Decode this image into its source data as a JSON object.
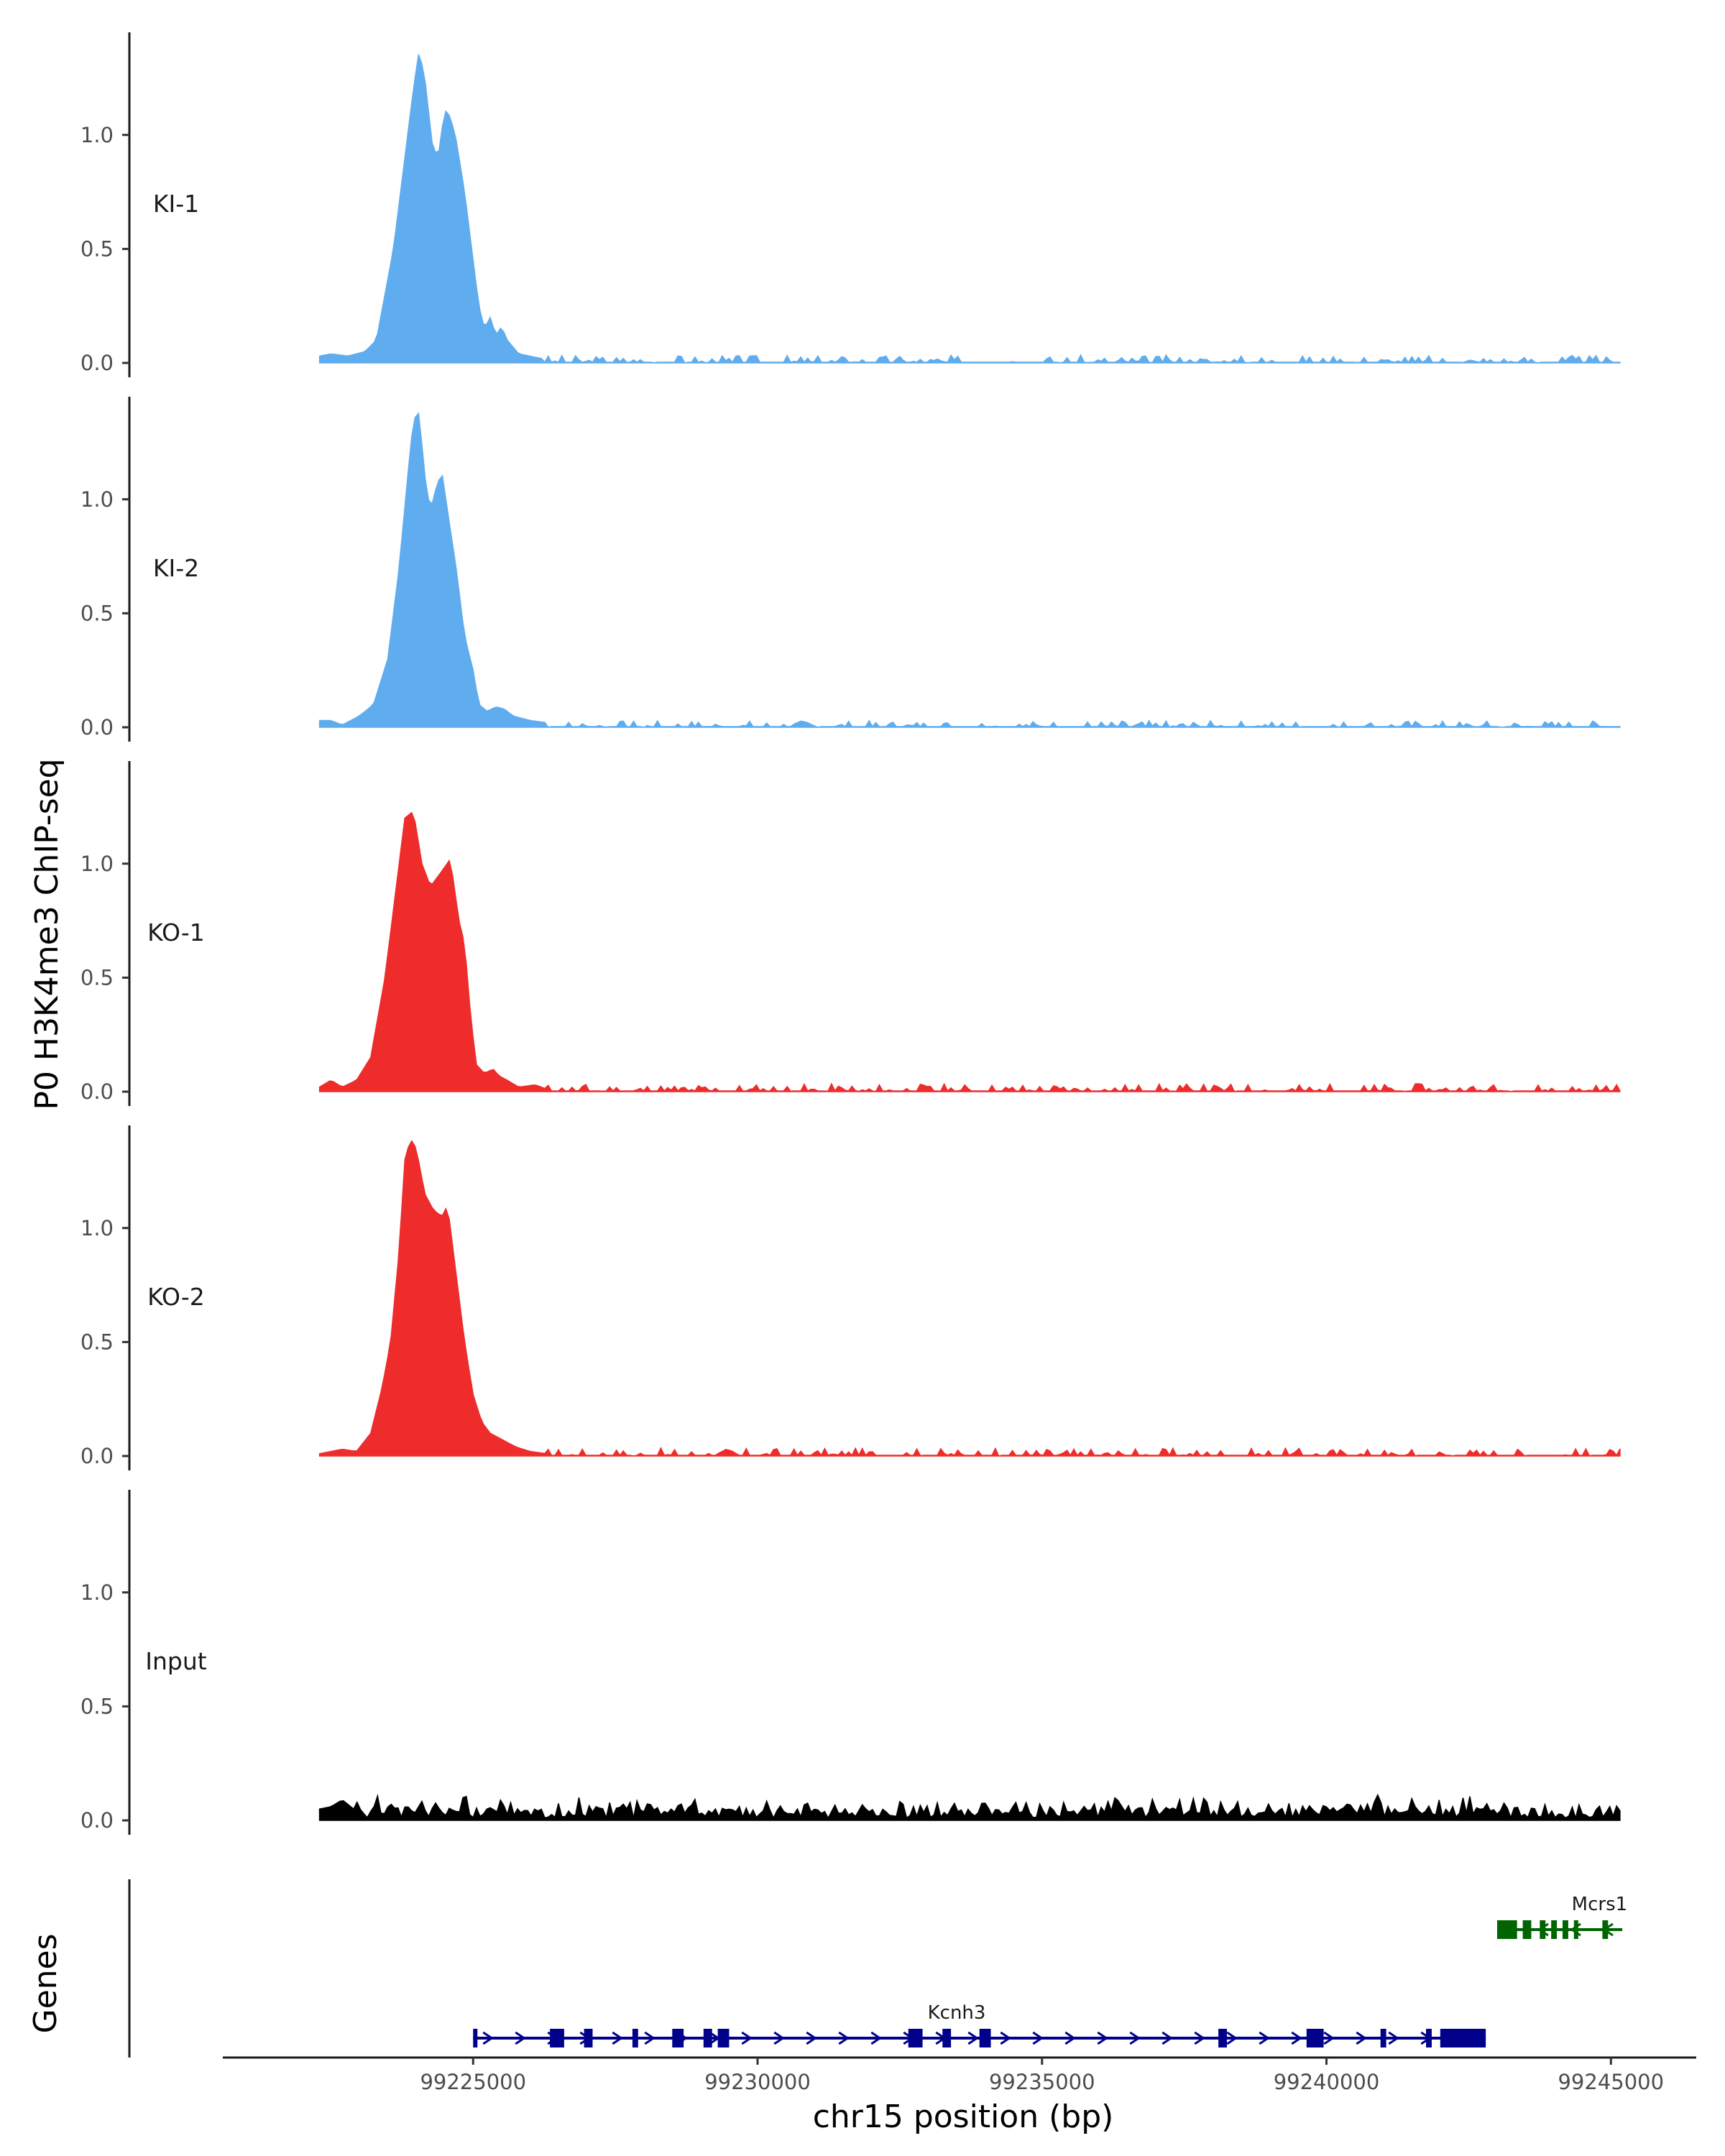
{
  "chart_data": {
    "type": "area",
    "ylabel": "P0 H3K4me3 ChIP-seq",
    "xlabel": "chr15 position (bp)",
    "ylim": [
      0,
      1.45
    ],
    "xlim": [
      99220600,
      99246500
    ],
    "yticks": [
      0.0,
      0.5,
      1.0
    ],
    "ytick_labels": [
      "0.0",
      "0.5",
      "1.0"
    ],
    "xticks": [
      99225000,
      99230000,
      99235000,
      99240000,
      99245000
    ],
    "xtick_labels": [
      "99225000",
      "99230000",
      "99235000",
      "99240000",
      "99245000"
    ],
    "x_start": 99222300,
    "x_end": 99245200,
    "baseline_gaps": [
      [
        99229500,
        99231000
      ]
    ],
    "series": [
      {
        "name": "KI-1",
        "color": "#5fadee",
        "peak": [
          [
            99222300,
            0.03
          ],
          [
            99222500,
            0.04
          ],
          [
            99222800,
            0.03
          ],
          [
            99223100,
            0.05
          ],
          [
            99223300,
            0.1
          ],
          [
            99223450,
            0.3
          ],
          [
            99223600,
            0.5
          ],
          [
            99223750,
            0.8
          ],
          [
            99223850,
            1.0
          ],
          [
            99223950,
            1.2
          ],
          [
            99224050,
            1.37
          ],
          [
            99224150,
            1.25
          ],
          [
            99224300,
            0.92
          ],
          [
            99224400,
            0.93
          ],
          [
            99224500,
            1.11
          ],
          [
            99224600,
            1.08
          ],
          [
            99224700,
            0.98
          ],
          [
            99224850,
            0.75
          ],
          [
            99225000,
            0.45
          ],
          [
            99225100,
            0.25
          ],
          [
            99225200,
            0.15
          ],
          [
            99225300,
            0.2
          ],
          [
            99225400,
            0.12
          ],
          [
            99225500,
            0.16
          ],
          [
            99225600,
            0.1
          ],
          [
            99225800,
            0.04
          ],
          [
            99226000,
            0.03
          ],
          [
            99226200,
            0.02
          ]
        ],
        "noise_seed": 3,
        "noise_amp": 0.03
      },
      {
        "name": "KI-2",
        "color": "#5fadee",
        "peak": [
          [
            99222300,
            0.03
          ],
          [
            99222500,
            0.03
          ],
          [
            99222700,
            0.01
          ],
          [
            99223000,
            0.05
          ],
          [
            99223250,
            0.1
          ],
          [
            99223500,
            0.3
          ],
          [
            99223700,
            0.7
          ],
          [
            99223850,
            1.1
          ],
          [
            99223950,
            1.35
          ],
          [
            99224050,
            1.38
          ],
          [
            99224150,
            1.1
          ],
          [
            99224250,
            0.95
          ],
          [
            99224350,
            1.05
          ],
          [
            99224450,
            1.12
          ],
          [
            99224550,
            0.95
          ],
          [
            99224700,
            0.7
          ],
          [
            99224850,
            0.4
          ],
          [
            99225000,
            0.25
          ],
          [
            99225100,
            0.1
          ],
          [
            99225250,
            0.07
          ],
          [
            99225400,
            0.09
          ],
          [
            99225550,
            0.08
          ],
          [
            99225700,
            0.05
          ],
          [
            99226000,
            0.03
          ],
          [
            99226300,
            0.02
          ]
        ],
        "noise_seed": 7,
        "noise_amp": 0.025
      },
      {
        "name": "KO-1",
        "color": "#ee2c2c",
        "peak": [
          [
            99222300,
            0.02
          ],
          [
            99222500,
            0.05
          ],
          [
            99222700,
            0.02
          ],
          [
            99222950,
            0.05
          ],
          [
            99223200,
            0.15
          ],
          [
            99223450,
            0.5
          ],
          [
            99223650,
            0.9
          ],
          [
            99223800,
            1.2
          ],
          [
            99223950,
            1.23
          ],
          [
            99224100,
            1.0
          ],
          [
            99224250,
            0.9
          ],
          [
            99224400,
            0.95
          ],
          [
            99224600,
            1.02
          ],
          [
            99224750,
            0.75
          ],
          [
            99224850,
            0.65
          ],
          [
            99224950,
            0.35
          ],
          [
            99225050,
            0.12
          ],
          [
            99225200,
            0.08
          ],
          [
            99225350,
            0.1
          ],
          [
            99225450,
            0.07
          ],
          [
            99225600,
            0.05
          ],
          [
            99225800,
            0.02
          ],
          [
            99226100,
            0.03
          ],
          [
            99226300,
            0.01
          ]
        ],
        "noise_seed": 11,
        "noise_amp": 0.03
      },
      {
        "name": "KO-2",
        "color": "#ee2c2c",
        "peak": [
          [
            99222300,
            0.01
          ],
          [
            99222500,
            0.02
          ],
          [
            99222700,
            0.03
          ],
          [
            99222950,
            0.02
          ],
          [
            99223200,
            0.1
          ],
          [
            99223400,
            0.3
          ],
          [
            99223550,
            0.5
          ],
          [
            99223700,
            0.9
          ],
          [
            99223800,
            1.3
          ],
          [
            99223900,
            1.39
          ],
          [
            99224000,
            1.35
          ],
          [
            99224150,
            1.15
          ],
          [
            99224300,
            1.08
          ],
          [
            99224450,
            1.05
          ],
          [
            99224550,
            1.1
          ],
          [
            99224700,
            0.8
          ],
          [
            99224850,
            0.5
          ],
          [
            99225000,
            0.27
          ],
          [
            99225150,
            0.15
          ],
          [
            99225300,
            0.1
          ],
          [
            99225450,
            0.08
          ],
          [
            99225600,
            0.06
          ],
          [
            99225750,
            0.04
          ],
          [
            99226000,
            0.02
          ],
          [
            99226300,
            0.01
          ]
        ],
        "noise_seed": 17,
        "noise_amp": 0.03
      },
      {
        "name": "Input",
        "color": "#000000",
        "peak": [
          [
            99222300,
            0.05
          ],
          [
            99222500,
            0.06
          ],
          [
            99222700,
            0.09
          ],
          [
            99222900,
            0.05
          ]
        ],
        "noise_seed": 23,
        "noise_amp": 0.07,
        "continuous": true
      }
    ],
    "genes": {
      "title": "Genes",
      "items": [
        {
          "name": "Kcnh3",
          "color": "#00008b",
          "strand": "+",
          "start": 99225000,
          "end": 99242800,
          "exons": [
            [
              99225000,
              99225050
            ],
            [
              99226350,
              99226600
            ],
            [
              99226950,
              99227100
            ],
            [
              99227800,
              99227900
            ],
            [
              99228500,
              99228700
            ],
            [
              99229050,
              99229200
            ],
            [
              99229300,
              99229500
            ],
            [
              99232650,
              99232900
            ],
            [
              99233250,
              99233400
            ],
            [
              99233900,
              99234100
            ],
            [
              99238100,
              99238250
            ],
            [
              99239650,
              99239950
            ],
            [
              99240950,
              99241050
            ],
            [
              99241750,
              99241850
            ],
            [
              99242000,
              99242800
            ]
          ]
        },
        {
          "name": "Mcrs1",
          "color": "#006400",
          "strand": "-",
          "start": 99243000,
          "end": 99245200,
          "exons": [
            [
              99243000,
              99243350
            ],
            [
              99243450,
              99243600
            ],
            [
              99243750,
              99243850
            ],
            [
              99243950,
              99244050
            ],
            [
              99244150,
              99244250
            ],
            [
              99244350,
              99244400
            ],
            [
              99244850,
              99244950
            ]
          ]
        }
      ]
    }
  }
}
